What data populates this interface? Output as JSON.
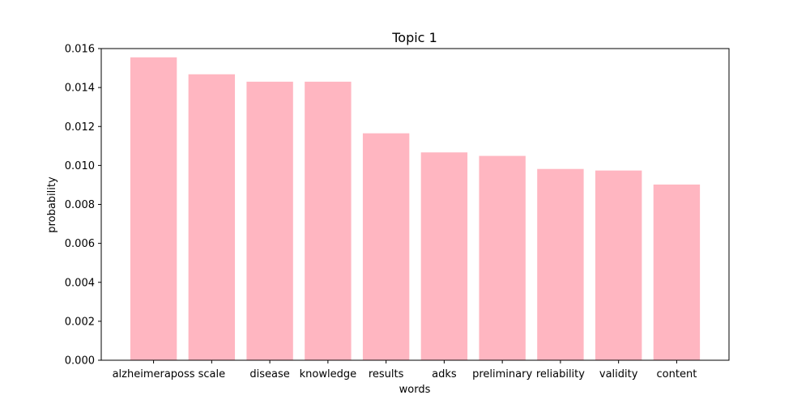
{
  "chart_data": {
    "type": "bar",
    "title": "Topic 1",
    "xlabel": "words",
    "ylabel": "probability",
    "categories": [
      "alzheimeraposs",
      "scale",
      "disease",
      "knowledge",
      "results",
      "adks",
      "preliminary",
      "reliability",
      "validity",
      "content"
    ],
    "values": [
      0.01555,
      0.01468,
      0.0143,
      0.0143,
      0.01165,
      0.01067,
      0.01049,
      0.00982,
      0.00974,
      0.00902
    ],
    "ylim": [
      0,
      0.016
    ],
    "yticks": [
      "0.000",
      "0.002",
      "0.004",
      "0.006",
      "0.008",
      "0.010",
      "0.012",
      "0.014",
      "0.016"
    ],
    "grid": false,
    "legend": "none",
    "colors": {
      "bar": "#ffb6c1",
      "axis": "#000000",
      "background": "#ffffff"
    }
  }
}
